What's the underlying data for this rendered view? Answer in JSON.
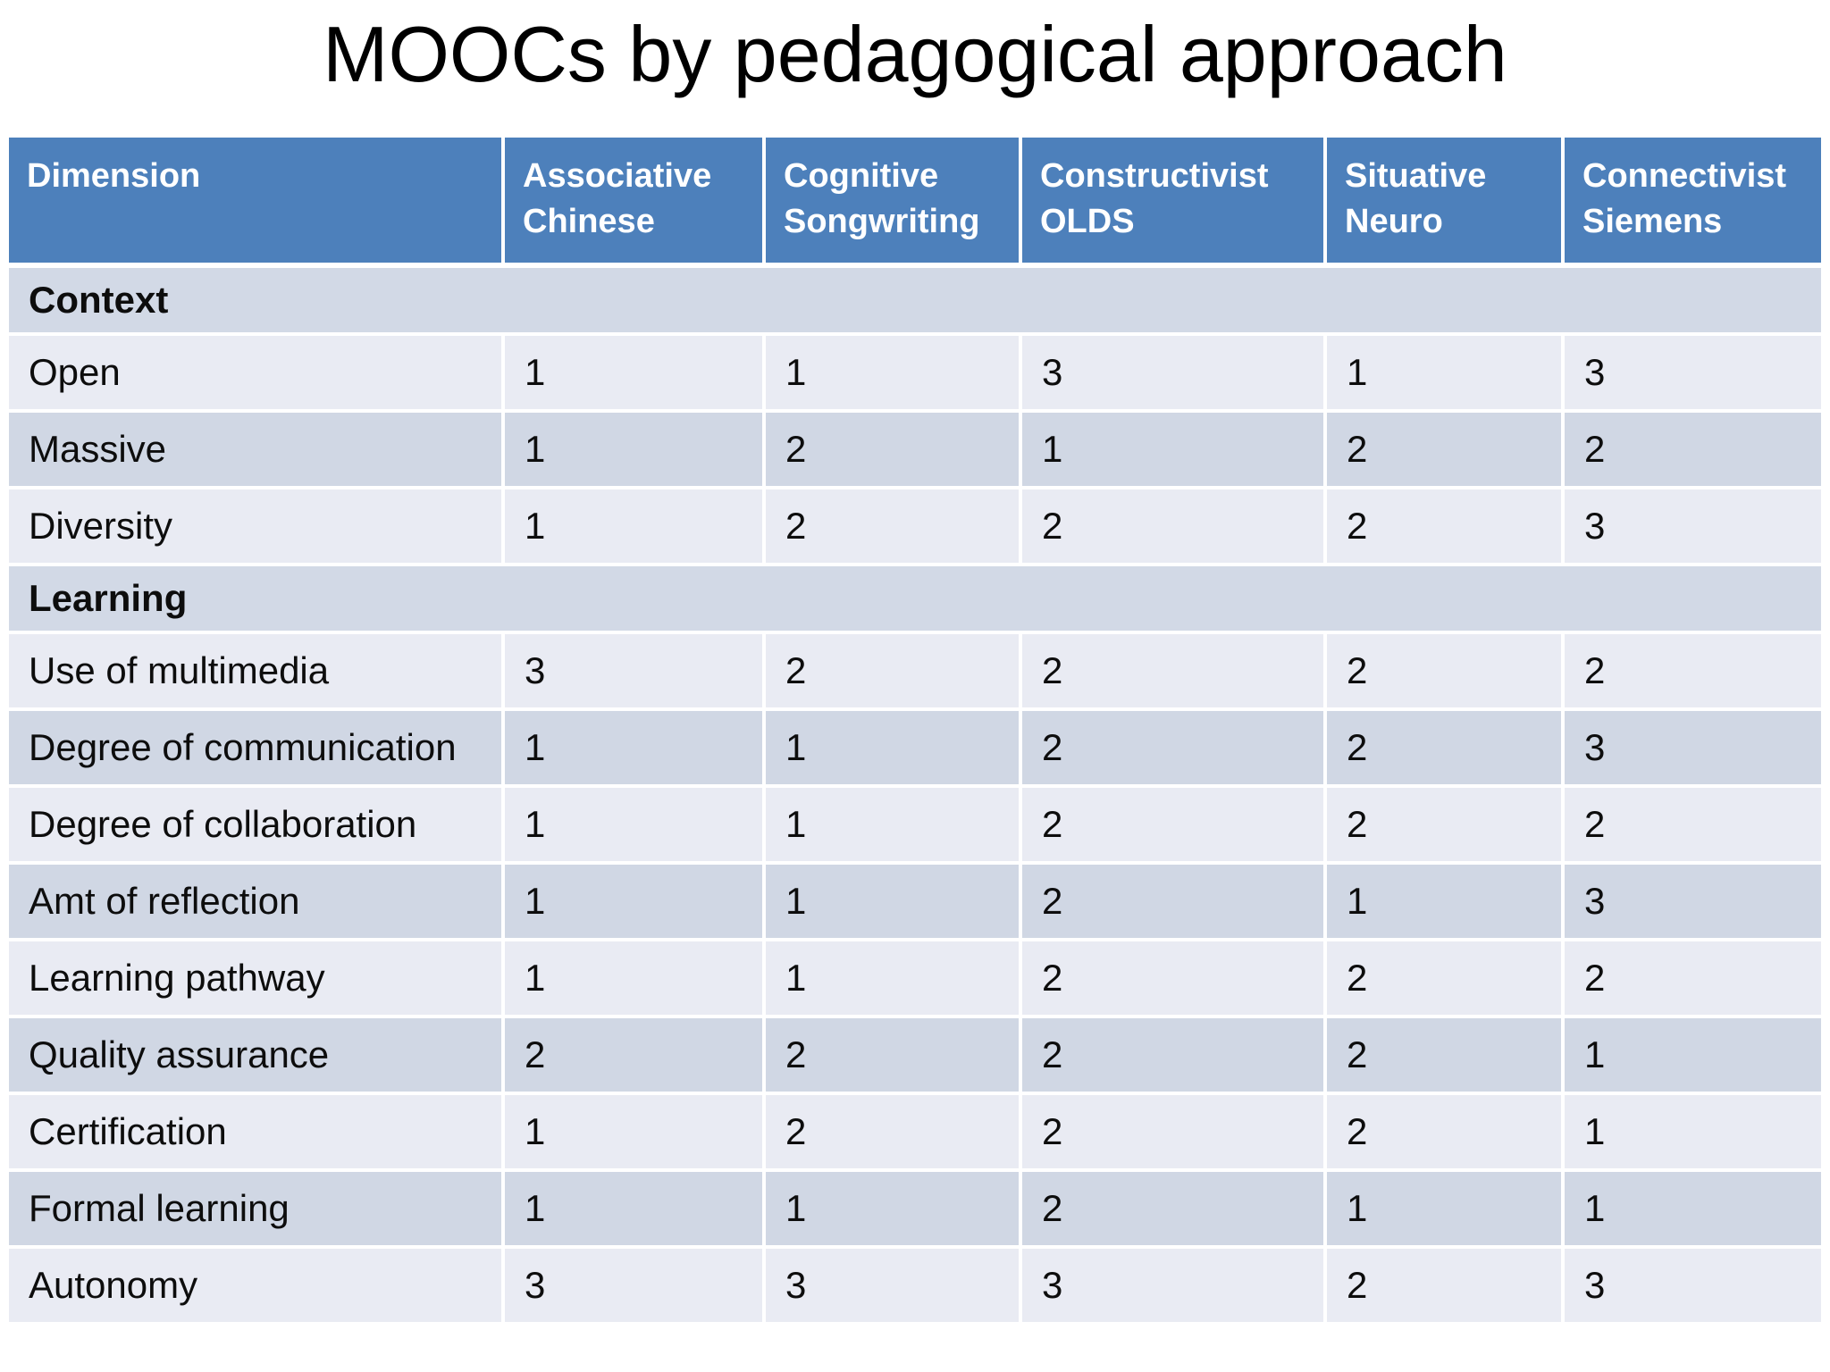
{
  "slide": {
    "title": "MOOCs by pedagogical approach"
  },
  "table": {
    "header": {
      "dimension": "Dimension",
      "columns": [
        "Associative Chinese",
        "Cognitive Songwriting",
        "Constructivist OLDS",
        "Situative Neuro",
        "Connectivist Siemens"
      ]
    },
    "sections": [
      {
        "label": "Context",
        "rows": [
          {
            "label": "Open",
            "values": [
              "1",
              "1",
              "3",
              "1",
              "3"
            ]
          },
          {
            "label": "Massive",
            "values": [
              "1",
              "2",
              "1",
              "2",
              "2"
            ]
          },
          {
            "label": "Diversity",
            "values": [
              "1",
              "2",
              "2",
              "2",
              "3"
            ]
          }
        ]
      },
      {
        "label": "Learning",
        "rows": [
          {
            "label": "Use of multimedia",
            "values": [
              "3",
              "2",
              "2",
              "2",
              "2"
            ]
          },
          {
            "label": "Degree of communication",
            "values": [
              "1",
              "1",
              "2",
              "2",
              "3"
            ]
          },
          {
            "label": "Degree of collaboration",
            "values": [
              "1",
              "1",
              "2",
              "2",
              "2"
            ]
          },
          {
            "label": "Amt of reflection",
            "values": [
              "1",
              "1",
              "2",
              "1",
              "3"
            ]
          },
          {
            "label": "Learning pathway",
            "values": [
              "1",
              "1",
              "2",
              "2",
              "2"
            ]
          },
          {
            "label": "Quality assurance",
            "values": [
              "2",
              "2",
              "2",
              "2",
              "1"
            ]
          },
          {
            "label": "Certification",
            "values": [
              "1",
              "2",
              "2",
              "2",
              "1"
            ]
          },
          {
            "label": "Formal learning",
            "values": [
              "1",
              "1",
              "2",
              "1",
              "1"
            ]
          },
          {
            "label": "Autonomy",
            "values": [
              "3",
              "3",
              "3",
              "2",
              "3"
            ]
          }
        ]
      }
    ],
    "colors": {
      "header_bg": "#4d80bb",
      "header_text": "#ffffff",
      "section_row_bg": "#d2d9e6",
      "row_light_bg": "#e9ebf3",
      "row_dark_bg": "#d0d7e4",
      "body_text": "#0d0d0d",
      "divider": "#ffffff"
    }
  }
}
